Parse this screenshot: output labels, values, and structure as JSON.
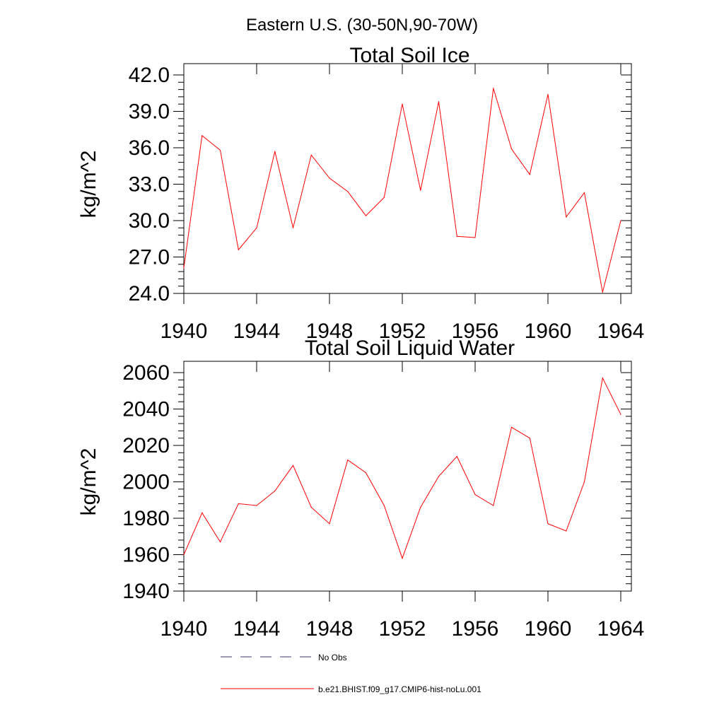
{
  "figure_title": "Eastern U.S. (30-50N,90-70W)",
  "legend": [
    {
      "label": "No Obs",
      "color": "#3a3a6a",
      "style": "dashed"
    },
    {
      "label": "b.e21.BHIST.f09_g17.CMIP6-hist-noLu.001",
      "color": "#ff0000",
      "style": "solid"
    }
  ],
  "chart_data": [
    {
      "type": "line",
      "title": "Total Soil Ice",
      "xlabel": "",
      "ylabel": "kg/m^2",
      "xlim": [
        1940,
        1964
      ],
      "ylim": [
        24,
        42
      ],
      "yticks": [
        24,
        27,
        30,
        33,
        36,
        39,
        42
      ],
      "ytick_labels": [
        "24.0",
        "27.0",
        "30.0",
        "33.0",
        "36.0",
        "39.0",
        "42.0"
      ],
      "xticks": [
        1940,
        1944,
        1948,
        1952,
        1956,
        1960,
        1964
      ],
      "xtick_labels": [
        "1940",
        "1944",
        "1948",
        "1952",
        "1956",
        "1960",
        "1964"
      ],
      "series": [
        {
          "name": "b.e21.BHIST.f09_g17.CMIP6-hist-noLu.001",
          "color": "#ff0000",
          "x": [
            1940,
            1941,
            1942,
            1943,
            1944,
            1945,
            1946,
            1947,
            1948,
            1949,
            1950,
            1951,
            1952,
            1953,
            1954,
            1955,
            1956,
            1957,
            1958,
            1959,
            1960,
            1961,
            1962,
            1963,
            1964
          ],
          "values": [
            26.1,
            37.0,
            35.8,
            27.6,
            29.4,
            35.7,
            29.4,
            35.4,
            33.5,
            32.4,
            30.4,
            31.9,
            39.6,
            32.5,
            39.8,
            28.7,
            28.6,
            40.9,
            35.9,
            33.8,
            40.4,
            30.3,
            32.3,
            24.1,
            30.0
          ]
        }
      ]
    },
    {
      "type": "line",
      "title": "Total Soil Liquid Water",
      "xlabel": "",
      "ylabel": "kg/m^2",
      "xlim": [
        1940,
        1964
      ],
      "ylim": [
        1940,
        2060
      ],
      "yticks": [
        1940,
        1960,
        1980,
        2000,
        2020,
        2040,
        2060
      ],
      "ytick_labels": [
        "1940",
        "1960",
        "1980",
        "2000",
        "2020",
        "2040",
        "2060"
      ],
      "xticks": [
        1940,
        1944,
        1948,
        1952,
        1956,
        1960,
        1964
      ],
      "xtick_labels": [
        "1940",
        "1944",
        "1948",
        "1952",
        "1956",
        "1960",
        "1964"
      ],
      "series": [
        {
          "name": "b.e21.BHIST.f09_g17.CMIP6-hist-noLu.001",
          "color": "#ff0000",
          "x": [
            1940,
            1941,
            1942,
            1943,
            1944,
            1945,
            1946,
            1947,
            1948,
            1949,
            1950,
            1951,
            1952,
            1953,
            1954,
            1955,
            1956,
            1957,
            1958,
            1959,
            1960,
            1961,
            1962,
            1963,
            1964
          ],
          "values": [
            1960,
            1983,
            1967,
            1988,
            1987,
            1995,
            2009,
            1986,
            1977,
            2012,
            2005,
            1987,
            1958,
            1986,
            2003,
            2014,
            1993,
            1987,
            2030,
            2024,
            1977,
            1973,
            2000,
            2057,
            2037
          ]
        }
      ]
    }
  ]
}
